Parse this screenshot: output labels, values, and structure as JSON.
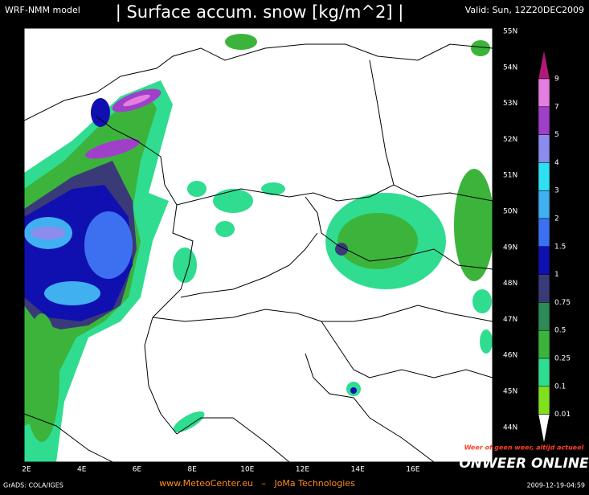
{
  "header": {
    "model": "WRF-NMM model",
    "title": "| Surface accum. snow [kg/m^2] |",
    "valid": "Valid: Sun, 12Z20DEC2009"
  },
  "map": {
    "lat_labels": [
      "55N",
      "54N",
      "53N",
      "52N",
      "51N",
      "50N",
      "49N",
      "48N",
      "47N",
      "46N",
      "45N",
      "44N"
    ],
    "lon_labels": [
      "2E",
      "4E",
      "6E",
      "8E",
      "10E",
      "12E",
      "14E",
      "16E"
    ]
  },
  "colorbar": {
    "labels": [
      "9",
      "7",
      "5",
      "4",
      "3",
      "2",
      "1.5",
      "1",
      "0.75",
      "0.5",
      "0.25",
      "0.1",
      "0.01"
    ],
    "colors": [
      "#b0187a",
      "#e47ee0",
      "#a040c8",
      "#8c8cec",
      "#30e0f0",
      "#40b0f0",
      "#3c70f0",
      "#1010b0",
      "#3a3a78",
      "#2e8b57",
      "#3cb43c",
      "#30dc90",
      "#80e020",
      "#ffffff"
    ]
  },
  "footer": {
    "credit": "GrADS: COLA/IGES",
    "site": "www.MeteoCenter.eu   –   JoMa Technologies",
    "slogan": "Weer of geen weer, altijd actueel",
    "logo": "ONWEER ONLINE",
    "timestamp": "2009-12-19-04:59"
  }
}
